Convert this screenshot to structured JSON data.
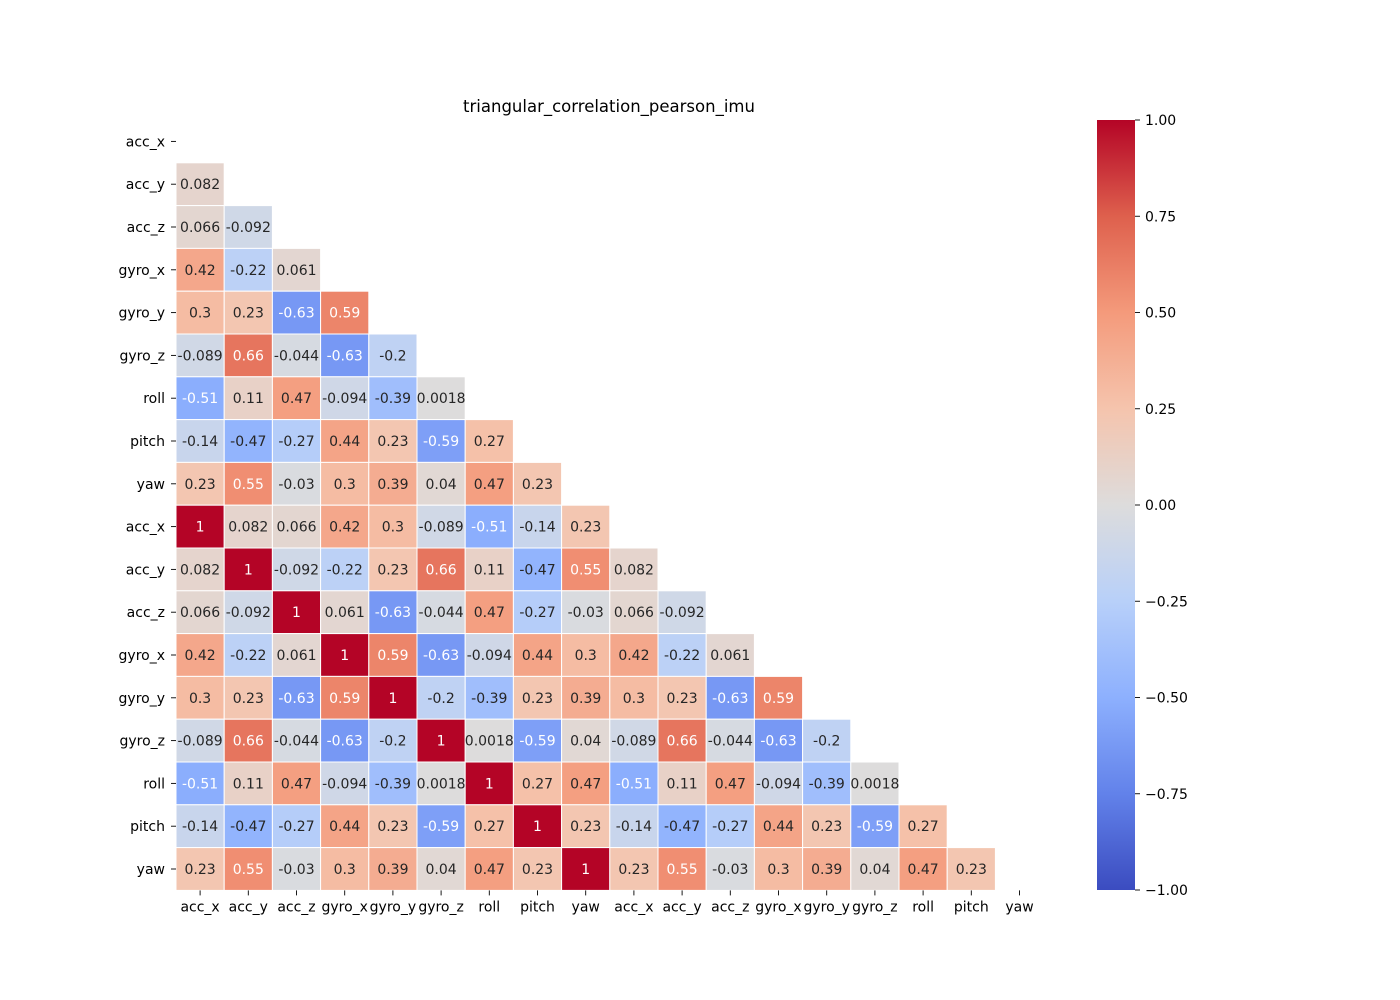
{
  "chart_data": {
    "type": "heatmap",
    "title": "triangular_correlation_pearson_imu",
    "colormap": "coolwarm",
    "vmin": -1.0,
    "vmax": 1.0,
    "show_upper_triangle": false,
    "show_diagonal_first_block": false,
    "cell_border_color": "#ffffff",
    "y_labels": [
      "acc_x",
      "acc_y",
      "acc_z",
      "gyro_x",
      "gyro_y",
      "gyro_z",
      "roll",
      "pitch",
      "yaw",
      "acc_x",
      "acc_y",
      "acc_z",
      "gyro_x",
      "gyro_y",
      "gyro_z",
      "roll",
      "pitch",
      "yaw"
    ],
    "x_labels": [
      "acc_x",
      "acc_y",
      "acc_z",
      "gyro_x",
      "gyro_y",
      "gyro_z",
      "roll",
      "pitch",
      "yaw",
      "acc_x",
      "acc_y",
      "acc_z",
      "gyro_x",
      "gyro_y",
      "gyro_z",
      "roll",
      "pitch",
      "yaw"
    ],
    "rows": [
      [],
      [
        "0.082"
      ],
      [
        "0.066",
        "-0.092"
      ],
      [
        "0.42",
        "-0.22",
        "0.061"
      ],
      [
        "0.3",
        "0.23",
        "-0.63",
        "0.59"
      ],
      [
        "-0.089",
        "0.66",
        "-0.044",
        "-0.63",
        "-0.2"
      ],
      [
        "-0.51",
        "0.11",
        "0.47",
        "-0.094",
        "-0.39",
        "0.0018"
      ],
      [
        "-0.14",
        "-0.47",
        "-0.27",
        "0.44",
        "0.23",
        "-0.59",
        "0.27"
      ],
      [
        "0.23",
        "0.55",
        "-0.03",
        "0.3",
        "0.39",
        "0.04",
        "0.47",
        "0.23"
      ],
      [
        "1",
        "0.082",
        "0.066",
        "0.42",
        "0.3",
        "-0.089",
        "-0.51",
        "-0.14",
        "0.23"
      ],
      [
        "0.082",
        "1",
        "-0.092",
        "-0.22",
        "0.23",
        "0.66",
        "0.11",
        "-0.47",
        "0.55",
        "0.082"
      ],
      [
        "0.066",
        "-0.092",
        "1",
        "0.061",
        "-0.63",
        "-0.044",
        "0.47",
        "-0.27",
        "-0.03",
        "0.066",
        "-0.092"
      ],
      [
        "0.42",
        "-0.22",
        "0.061",
        "1",
        "0.59",
        "-0.63",
        "-0.094",
        "0.44",
        "0.3",
        "0.42",
        "-0.22",
        "0.061"
      ],
      [
        "0.3",
        "0.23",
        "-0.63",
        "0.59",
        "1",
        "-0.2",
        "-0.39",
        "0.23",
        "0.39",
        "0.3",
        "0.23",
        "-0.63",
        "0.59"
      ],
      [
        "-0.089",
        "0.66",
        "-0.044",
        "-0.63",
        "-0.2",
        "1",
        "0.0018",
        "-0.59",
        "0.04",
        "-0.089",
        "0.66",
        "-0.044",
        "-0.63",
        "-0.2"
      ],
      [
        "-0.51",
        "0.11",
        "0.47",
        "-0.094",
        "-0.39",
        "0.0018",
        "1",
        "0.27",
        "0.47",
        "-0.51",
        "0.11",
        "0.47",
        "-0.094",
        "-0.39",
        "0.0018"
      ],
      [
        "-0.14",
        "-0.47",
        "-0.27",
        "0.44",
        "0.23",
        "-0.59",
        "0.27",
        "1",
        "0.23",
        "-0.14",
        "-0.47",
        "-0.27",
        "0.44",
        "0.23",
        "-0.59",
        "0.27"
      ],
      [
        "0.23",
        "0.55",
        "-0.03",
        "0.3",
        "0.39",
        "0.04",
        "0.47",
        "0.23",
        "1",
        "0.23",
        "0.55",
        "-0.03",
        "0.3",
        "0.39",
        "0.04",
        "0.47",
        "0.23"
      ]
    ],
    "colorbar": {
      "ticks": [
        1.0,
        0.75,
        0.5,
        0.25,
        0.0,
        -0.25,
        -0.5,
        -0.75,
        -1.0
      ],
      "tick_labels": [
        "1.00",
        "0.75",
        "0.50",
        "0.25",
        "0.00",
        "−0.25",
        "−0.50",
        "−0.75",
        "−1.00"
      ]
    }
  }
}
